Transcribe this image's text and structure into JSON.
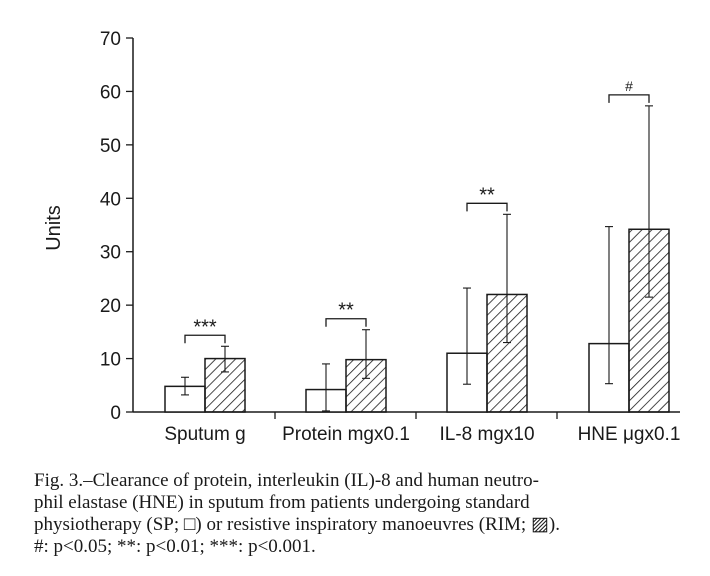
{
  "chart_data": {
    "type": "bar",
    "ylabel": "Units",
    "ylim": [
      0,
      70
    ],
    "yticks": [
      0,
      10,
      20,
      30,
      40,
      50,
      60,
      70
    ],
    "categories": [
      "Sputum g",
      "Protein mgx0.1",
      "IL-8 mgx10",
      "HNE μgx0.1"
    ],
    "series": [
      {
        "name": "SP",
        "fill": "open",
        "values": [
          4.8,
          4.2,
          11.0,
          12.8
        ],
        "error_low": [
          3.2,
          0.2,
          5.2,
          5.3
        ],
        "error_high": [
          6.5,
          9.0,
          23.2,
          34.7
        ]
      },
      {
        "name": "RIM",
        "fill": "hatched",
        "values": [
          10.0,
          9.8,
          22.0,
          34.2
        ],
        "error_low": [
          7.5,
          6.3,
          13.0,
          21.5
        ],
        "error_high": [
          12.3,
          15.4,
          37.0,
          57.3
        ]
      }
    ],
    "significance": [
      "***",
      "**",
      "**",
      "#"
    ],
    "colors": {
      "ink": "#1a1a1a",
      "background": "#ffffff"
    }
  },
  "caption": {
    "lines": [
      "Fig. 3.–Clearance of protein, interleukin (IL)-8 and human neutro-",
      "phil elastase (HNE) in sputum from patients undergoing standard",
      "physiotherapy (SP; □) or resistive inspiratory manoeuvres (RIM; ▨).",
      "#: p<0.05; **: p<0.01; ***: p<0.001."
    ]
  }
}
